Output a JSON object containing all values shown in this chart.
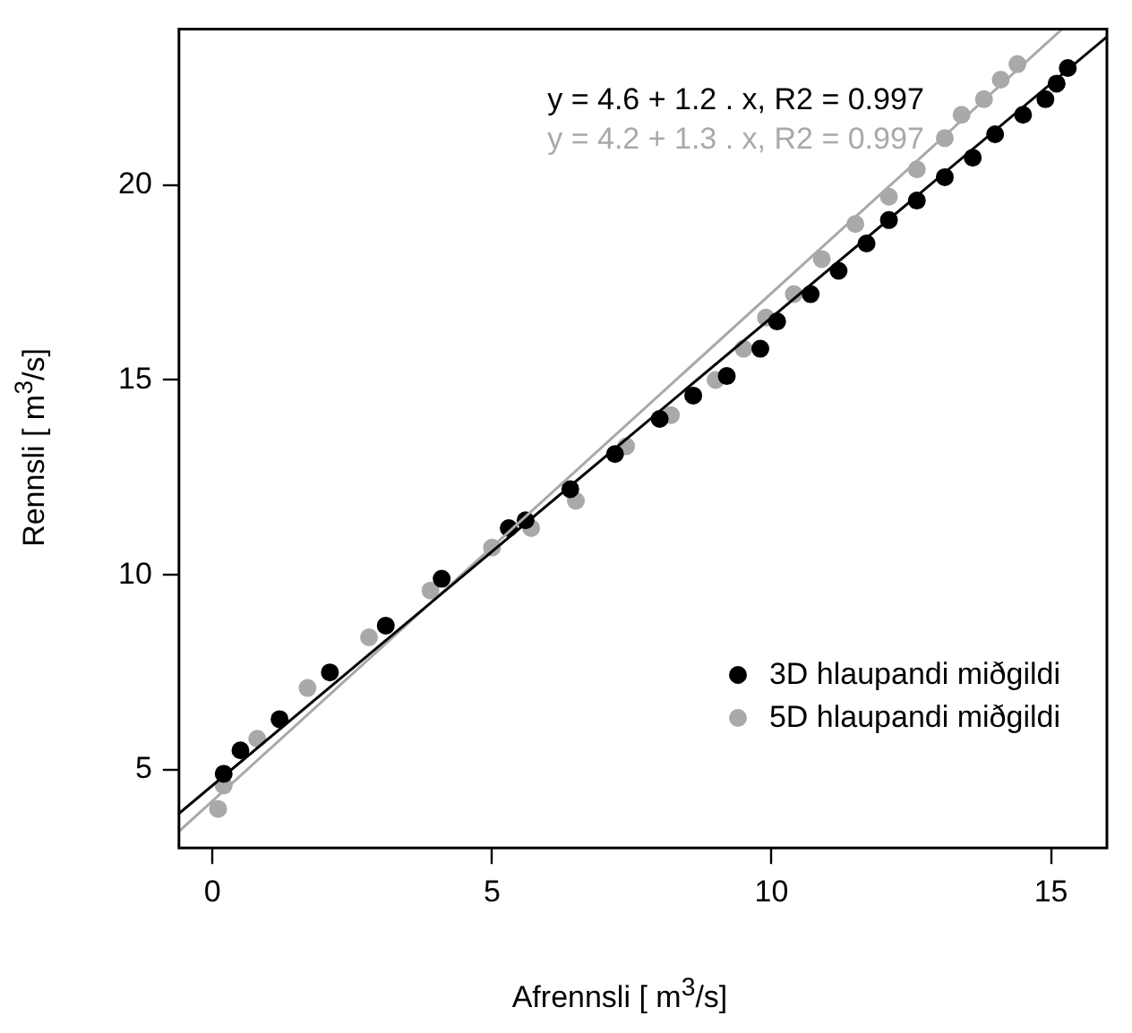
{
  "chart_data": {
    "type": "scatter",
    "xlabel": "Afrennsli [ m$^{3}$/s]",
    "ylabel": "Rennsli [ m$^{3}$/s]",
    "annotations": [
      "y = 4.6 + 1.2 . x, R2 = 0.997",
      "y = 4.2 + 1.3 . x, R2 = 0.997"
    ],
    "series": [
      {
        "name": "3D hlaupandi miðgildi",
        "color": "#000000",
        "marker": "circle",
        "x": [
          0.2,
          0.5,
          1.2,
          2.1,
          3.1,
          4.1,
          5.3,
          5.6,
          6.4,
          7.2,
          8.0,
          8.6,
          9.2,
          9.8,
          10.1,
          10.7,
          11.2,
          11.7,
          12.1,
          12.6,
          13.1,
          13.6,
          14.0,
          14.5,
          14.9,
          15.1,
          15.3
        ],
        "values": [
          4.9,
          5.5,
          6.3,
          7.5,
          8.7,
          9.9,
          11.2,
          11.4,
          12.2,
          13.1,
          14.0,
          14.6,
          15.1,
          15.8,
          16.5,
          17.2,
          17.8,
          18.5,
          19.1,
          19.6,
          20.2,
          20.7,
          21.3,
          21.8,
          22.2,
          22.6,
          23.0
        ]
      },
      {
        "name": "5D hlaupandi miðgildi",
        "color": "#a9a9a9",
        "marker": "circle",
        "x": [
          0.1,
          0.2,
          0.8,
          1.7,
          2.8,
          3.9,
          5.0,
          5.7,
          6.5,
          7.4,
          8.2,
          9.0,
          9.5,
          9.9,
          10.4,
          10.9,
          11.5,
          12.1,
          12.6,
          13.1,
          13.4,
          13.8,
          14.1,
          14.4
        ],
        "values": [
          4.0,
          4.6,
          5.8,
          7.1,
          8.4,
          9.6,
          10.7,
          11.2,
          11.9,
          13.3,
          14.1,
          15.0,
          15.8,
          16.6,
          17.2,
          18.1,
          19.0,
          19.7,
          20.4,
          21.2,
          21.8,
          22.2,
          22.7,
          23.1
        ]
      },
      {
        "type": "line",
        "color": "#000000",
        "marker": "none",
        "x": [
          -0.6,
          16.0
        ],
        "values": [
          3.88,
          23.8
        ]
      },
      {
        "type": "line",
        "color": "#a9a9a9",
        "marker": "none",
        "x": [
          -0.6,
          15.2
        ],
        "values": [
          3.42,
          24.0
        ]
      }
    ],
    "xlim": [
      -0.6,
      16.0
    ],
    "ylim": [
      3.0,
      24.0
    ],
    "xticks": [
      0,
      5,
      10,
      15
    ],
    "yticks": [
      5,
      10,
      15,
      20
    ],
    "grid": false,
    "legend": "right"
  }
}
